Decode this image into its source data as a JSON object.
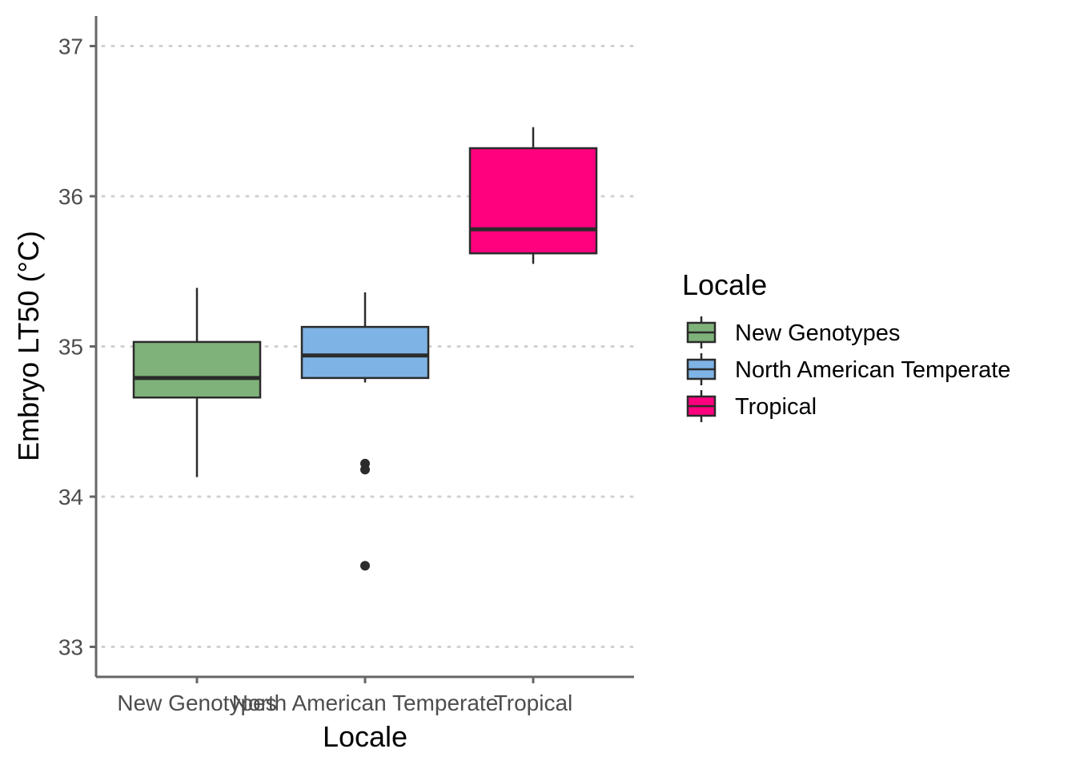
{
  "chart_data": {
    "type": "box",
    "xlabel": "Locale",
    "ylabel": "Embryo LT50 (°C)",
    "ylim": [
      32.8,
      37.2
    ],
    "yticks": [
      33,
      34,
      35,
      36,
      37
    ],
    "grid": "horizontal-dotted",
    "legend": {
      "title": "Locale",
      "placement": "right"
    },
    "categories": [
      "New Genotypes",
      "North American Temperate",
      "Tropical"
    ],
    "series": [
      {
        "name": "New Genotypes",
        "color": "#7fb27a",
        "whisker_low": 34.13,
        "q1": 34.66,
        "median": 34.79,
        "q3": 35.03,
        "whisker_high": 35.39,
        "outliers": []
      },
      {
        "name": "North American Temperate",
        "color": "#7eb3e5",
        "whisker_low": 34.76,
        "q1": 34.79,
        "median": 34.94,
        "q3": 35.13,
        "whisker_high": 35.36,
        "outliers": [
          34.22,
          34.18,
          33.54
        ]
      },
      {
        "name": "Tropical",
        "color": "#ff007f",
        "whisker_low": 35.55,
        "q1": 35.62,
        "median": 35.78,
        "q3": 36.32,
        "whisker_high": 36.46,
        "outliers": []
      }
    ]
  }
}
